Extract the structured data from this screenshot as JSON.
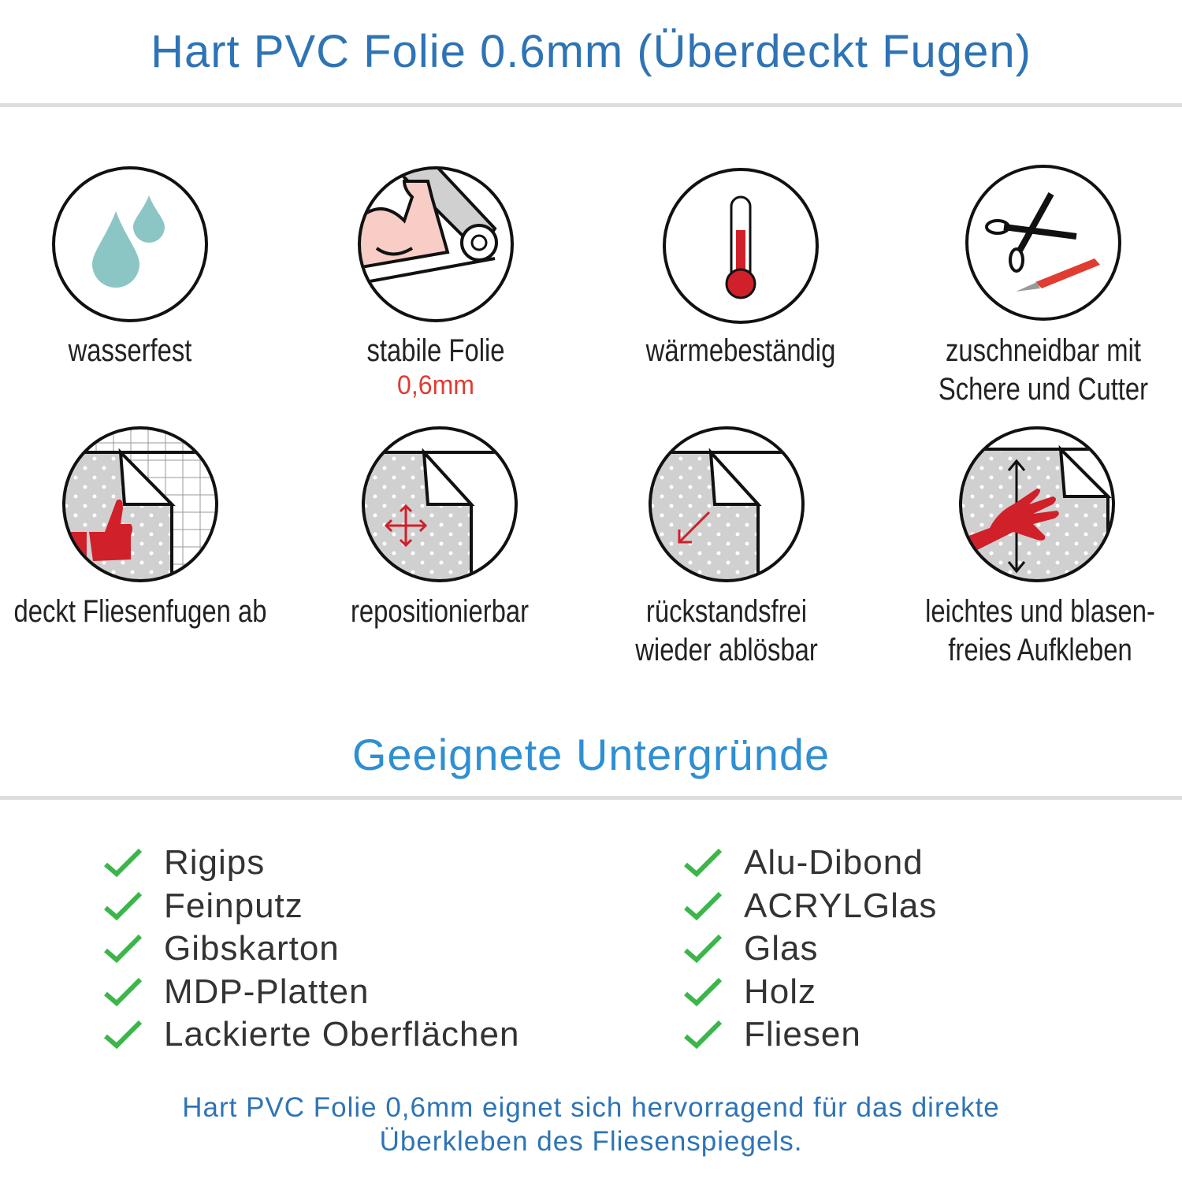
{
  "header": {
    "title": "Hart PVC Folie 0.6mm (Überdeckt Fugen)"
  },
  "features": [
    {
      "icon": "water-drops-icon",
      "label": "wasserfest"
    },
    {
      "icon": "flexed-arm-icon",
      "label": "stabile Folie",
      "sublabel": "0,6mm"
    },
    {
      "icon": "thermometer-icon",
      "label": "wärmebeständig"
    },
    {
      "icon": "scissors-cutter-icon",
      "label": "zuschneidbar mit",
      "label2": "Schere und Cutter"
    },
    {
      "icon": "thumbs-up-tiles-icon",
      "label": "deckt Fliesenfugen ab"
    },
    {
      "icon": "move-arrows-icon",
      "label": "repositionierbar"
    },
    {
      "icon": "peel-arrow-icon",
      "label": "rückstandsfrei",
      "label2": "wieder ablösbar"
    },
    {
      "icon": "hand-smoothing-icon",
      "label": "leichtes und blasen-",
      "label2": "freies Aufkleben"
    }
  ],
  "surfaces": {
    "title": "Geeignete Untergründe",
    "left": [
      "Rigips",
      "Feinputz",
      "Gibskarton",
      "MDP-Platten",
      "Lackierte Oberflächen"
    ],
    "right": [
      "Alu-Dibond",
      "ACRYLGlas",
      "Glas",
      "Holz",
      "Fliesen"
    ]
  },
  "footer": {
    "line1": "Hart PVC Folie 0,6mm eignet sich hervorragend für das direkte",
    "line2": "Überkleben des Fliesenspiegels."
  },
  "colors": {
    "title": "#2e74b5",
    "check": "#3cb54a",
    "accent_red": "#d0202a",
    "drop": "#8cc6c4"
  }
}
